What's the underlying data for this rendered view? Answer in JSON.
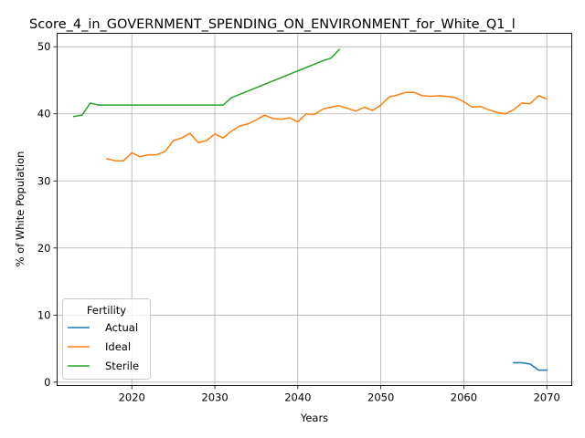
{
  "chart_data": {
    "type": "line",
    "title": "Score_4_in_GOVERNMENT_SPENDING_ON_ENVIRONMENT_for_White_Q1_l",
    "xlabel": "Years",
    "ylabel": "% of White Population",
    "xlim": [
      2011,
      2073
    ],
    "ylim": [
      -0.5,
      52
    ],
    "xticks": [
      2020,
      2030,
      2040,
      2050,
      2060,
      2070
    ],
    "yticks": [
      0,
      10,
      20,
      30,
      40,
      50
    ],
    "grid": true,
    "legend": {
      "title": "Fertility",
      "position": "lower-left"
    },
    "series": [
      {
        "name": "Actual",
        "color": "#1f77b4",
        "x": [
          2066,
          2067,
          2068,
          2069,
          2070
        ],
        "y": [
          2.9,
          2.9,
          2.7,
          1.8,
          1.8
        ]
      },
      {
        "name": "Ideal",
        "color": "#ff7f0e",
        "x": [
          2017,
          2018,
          2019,
          2020,
          2021,
          2022,
          2023,
          2024,
          2025,
          2026,
          2027,
          2028,
          2029,
          2030,
          2031,
          2032,
          2033,
          2034,
          2035,
          2036,
          2037,
          2038,
          2039,
          2040,
          2041,
          2042,
          2043,
          2044,
          2045,
          2046,
          2047,
          2048,
          2049,
          2050,
          2051,
          2052,
          2053,
          2054,
          2055,
          2056,
          2057,
          2058,
          2059,
          2060,
          2061,
          2062,
          2063,
          2064,
          2065,
          2066,
          2067,
          2068,
          2069,
          2070
        ],
        "y": [
          33.3,
          33.0,
          33.0,
          34.2,
          33.6,
          33.9,
          33.9,
          34.4,
          36.0,
          36.4,
          37.1,
          35.7,
          36.0,
          37.0,
          36.4,
          37.4,
          38.2,
          38.5,
          39.1,
          39.8,
          39.3,
          39.2,
          39.4,
          38.8,
          40.0,
          39.9,
          40.7,
          41.0,
          41.2,
          40.8,
          40.4,
          41.0,
          40.5,
          41.3,
          42.5,
          42.8,
          43.2,
          43.2,
          42.7,
          42.6,
          42.7,
          42.6,
          42.4,
          41.8,
          41.0,
          41.1,
          40.6,
          40.2,
          40.0,
          40.6,
          41.6,
          41.5,
          42.7,
          42.2
        ]
      },
      {
        "name": "Sterile",
        "color": "#2ca02c",
        "x": [
          2013,
          2014,
          2015,
          2016,
          2017,
          2018,
          2019,
          2020,
          2021,
          2022,
          2023,
          2024,
          2025,
          2026,
          2027,
          2028,
          2029,
          2030,
          2031,
          2032,
          2033,
          2034,
          2035,
          2036,
          2037,
          2038,
          2039,
          2040,
          2041,
          2042,
          2043,
          2044,
          2045
        ],
        "y": [
          39.6,
          39.8,
          41.6,
          41.3,
          41.3,
          41.3,
          41.3,
          41.3,
          41.3,
          41.3,
          41.3,
          41.3,
          41.3,
          41.3,
          41.3,
          41.3,
          41.3,
          41.3,
          41.3,
          42.4,
          42.9,
          43.4,
          43.9,
          44.4,
          44.9,
          45.4,
          45.9,
          46.4,
          46.9,
          47.4,
          47.9,
          48.3,
          49.6
        ]
      }
    ]
  }
}
